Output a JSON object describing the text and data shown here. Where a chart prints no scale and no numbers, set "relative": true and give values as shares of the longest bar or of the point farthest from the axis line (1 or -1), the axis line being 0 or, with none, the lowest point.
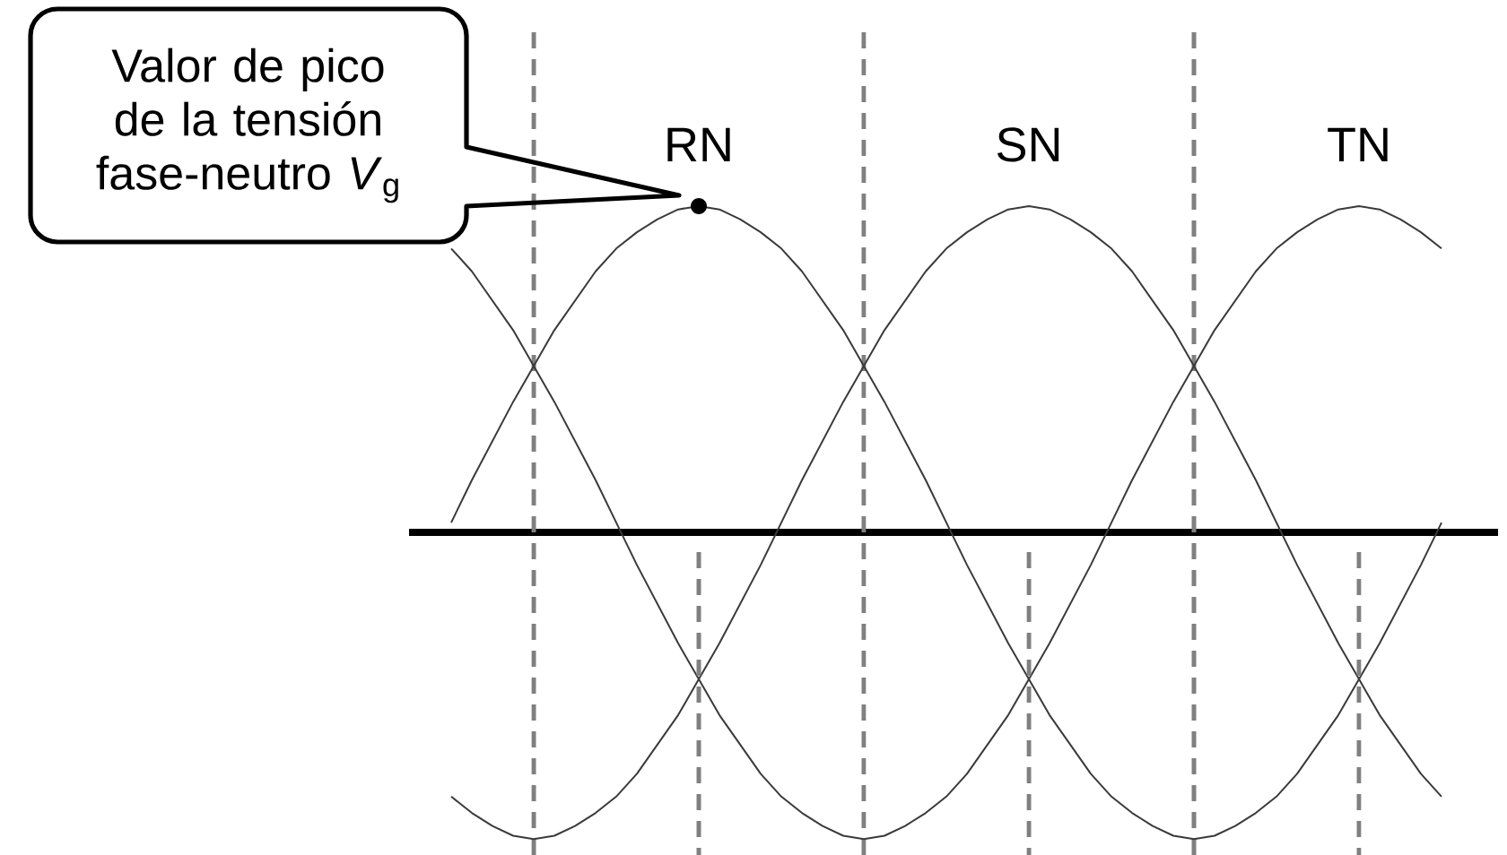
{
  "chart_data": {
    "type": "line",
    "relative": true,
    "line_style": "solid",
    "grid": "x",
    "categories": [
      null,
      null,
      null,
      null,
      null,
      null,
      null,
      null,
      null,
      null,
      null,
      null,
      null,
      null,
      null,
      null,
      null,
      null,
      null,
      null,
      null,
      null,
      null,
      null,
      null,
      null,
      null,
      null,
      null,
      null,
      null,
      null,
      null,
      null,
      null,
      null,
      null,
      null,
      null,
      null,
      null,
      null,
      null,
      null,
      null,
      null,
      null,
      null,
      null
    ],
    "series": [
      {
        "name": "RN",
        "color": "#3a3a3a",
        "values": [
          0.03,
          0.16,
          0.28,
          0.4,
          0.51,
          0.62,
          0.71,
          0.8,
          0.87,
          0.92,
          0.96,
          0.99,
          1.0,
          0.99,
          0.96,
          0.92,
          0.87,
          0.8,
          0.71,
          0.62,
          0.51,
          0.4,
          0.28,
          0.16,
          0.03,
          -0.1,
          -0.22,
          -0.34,
          -0.45,
          -0.56,
          -0.65,
          -0.74,
          -0.81,
          -0.86,
          -0.9,
          -0.93,
          -0.94,
          -0.93,
          -0.9,
          -0.86,
          -0.81,
          -0.74,
          -0.65,
          -0.56,
          -0.45,
          -0.34,
          -0.22,
          -0.1,
          0.03
        ]
      },
      {
        "name": "SN",
        "color": "#3a3a3a",
        "values": [
          -0.81,
          -0.86,
          -0.9,
          -0.93,
          -0.94,
          -0.93,
          -0.9,
          -0.86,
          -0.81,
          -0.74,
          -0.65,
          -0.56,
          -0.45,
          -0.34,
          -0.22,
          -0.1,
          0.03,
          0.16,
          0.28,
          0.4,
          0.51,
          0.62,
          0.71,
          0.8,
          0.87,
          0.92,
          0.96,
          0.99,
          1.0,
          0.99,
          0.96,
          0.92,
          0.87,
          0.8,
          0.71,
          0.62,
          0.51,
          0.4,
          0.28,
          0.16,
          0.03,
          -0.1,
          -0.22,
          -0.34,
          -0.45,
          -0.56,
          -0.65,
          -0.74,
          -0.81
        ]
      },
      {
        "name": "TN",
        "color": "#3a3a3a",
        "values": [
          0.87,
          0.8,
          0.71,
          0.62,
          0.51,
          0.4,
          0.28,
          0.16,
          0.03,
          -0.1,
          -0.22,
          -0.34,
          -0.45,
          -0.56,
          -0.65,
          -0.74,
          -0.81,
          -0.86,
          -0.9,
          -0.93,
          -0.94,
          -0.93,
          -0.9,
          -0.86,
          -0.81,
          -0.74,
          -0.65,
          -0.56,
          -0.45,
          -0.34,
          -0.22,
          -0.1,
          0.03,
          0.16,
          0.28,
          0.4,
          0.51,
          0.62,
          0.71,
          0.8,
          0.87,
          0.92,
          0.96,
          0.99,
          1.0,
          0.99,
          0.96,
          0.92,
          0.87
        ]
      }
    ],
    "annotations": [
      "Valor de pico de la tensión fase-neutro *V*$_{g}$"
    ]
  }
}
